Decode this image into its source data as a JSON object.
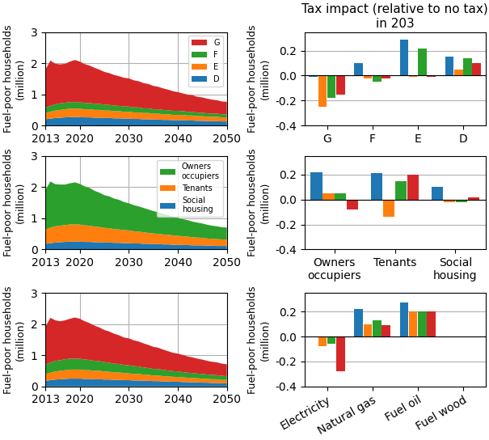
{
  "chart_data": [
    {
      "type": "area",
      "stacked": true,
      "x": [
        2013,
        2014,
        2015,
        2016,
        2017,
        2018,
        2019,
        2020,
        2021,
        2022,
        2023,
        2024,
        2025,
        2026,
        2027,
        2028,
        2029,
        2030,
        2031,
        2032,
        2033,
        2034,
        2035,
        2036,
        2037,
        2038,
        2039,
        2040,
        2041,
        2042,
        2043,
        2044,
        2045,
        2046,
        2047,
        2048,
        2049,
        2050
      ],
      "series": [
        {
          "name": "D",
          "values": [
            0.2,
            0.22,
            0.24,
            0.25,
            0.26,
            0.27,
            0.27,
            0.27,
            0.26,
            0.26,
            0.25,
            0.25,
            0.24,
            0.24,
            0.23,
            0.23,
            0.22,
            0.22,
            0.21,
            0.21,
            0.2,
            0.2,
            0.19,
            0.19,
            0.18,
            0.18,
            0.17,
            0.17,
            0.17,
            0.16,
            0.16,
            0.15,
            0.15,
            0.14,
            0.14,
            0.14,
            0.13,
            0.13
          ]
        },
        {
          "name": "E",
          "values": [
            0.2,
            0.22,
            0.24,
            0.25,
            0.26,
            0.27,
            0.27,
            0.27,
            0.26,
            0.26,
            0.25,
            0.25,
            0.24,
            0.24,
            0.23,
            0.23,
            0.22,
            0.22,
            0.21,
            0.21,
            0.2,
            0.2,
            0.19,
            0.19,
            0.18,
            0.18,
            0.17,
            0.17,
            0.17,
            0.16,
            0.16,
            0.15,
            0.15,
            0.14,
            0.14,
            0.14,
            0.13,
            0.13
          ]
        },
        {
          "name": "F",
          "values": [
            0.18,
            0.19,
            0.2,
            0.21,
            0.21,
            0.21,
            0.21,
            0.21,
            0.2,
            0.2,
            0.2,
            0.19,
            0.19,
            0.18,
            0.18,
            0.17,
            0.17,
            0.17,
            0.16,
            0.16,
            0.15,
            0.15,
            0.14,
            0.14,
            0.14,
            0.13,
            0.13,
            0.13,
            0.12,
            0.12,
            0.12,
            0.11,
            0.11,
            0.11,
            0.1,
            0.1,
            0.1,
            0.1
          ]
        },
        {
          "name": "G",
          "values": [
            1.22,
            1.45,
            1.3,
            1.25,
            1.25,
            1.3,
            1.35,
            1.3,
            1.25,
            1.2,
            1.15,
            1.1,
            1.05,
            1.02,
            0.98,
            0.95,
            0.92,
            0.9,
            0.87,
            0.84,
            0.81,
            0.78,
            0.75,
            0.72,
            0.69,
            0.66,
            0.63,
            0.6,
            0.57,
            0.55,
            0.53,
            0.51,
            0.49,
            0.47,
            0.45,
            0.43,
            0.41,
            0.4
          ]
        }
      ],
      "ylabel": "Fuel-poor households\n(million)",
      "xlim": [
        2013,
        2050
      ],
      "ylim": [
        0,
        3
      ],
      "xticks": [
        2013,
        2020,
        2030,
        2040,
        2050
      ],
      "yticks": [
        0,
        1,
        2,
        3
      ],
      "grid": true,
      "legend": "upper right"
    },
    {
      "type": "bar",
      "title": "Tax impact (relative to no tax) in 203",
      "categories": [
        "G",
        "F",
        "E",
        "D"
      ],
      "series": [
        {
          "values": [
            -0.01,
            0.1,
            0.29,
            0.15
          ]
        },
        {
          "values": [
            -0.25,
            -0.02,
            -0.01,
            0.05
          ]
        },
        {
          "values": [
            -0.18,
            -0.05,
            0.22,
            0.14
          ]
        },
        {
          "values": [
            -0.15,
            -0.02,
            -0.01,
            0.1
          ]
        }
      ],
      "ylabel": "Fuel-poor households\n(million)",
      "ylim": [
        -0.4,
        0.35
      ],
      "yticks": [
        -0.4,
        -0.2,
        0.0,
        0.2
      ],
      "grid": "y"
    },
    {
      "type": "area",
      "stacked": true,
      "x": [
        2013,
        2014,
        2015,
        2016,
        2017,
        2018,
        2019,
        2020,
        2021,
        2022,
        2023,
        2024,
        2025,
        2026,
        2027,
        2028,
        2029,
        2030,
        2031,
        2032,
        2033,
        2034,
        2035,
        2036,
        2037,
        2038,
        2039,
        2040,
        2041,
        2042,
        2043,
        2044,
        2045,
        2046,
        2047,
        2048,
        2049,
        2050
      ],
      "series": [
        {
          "name": "Social\nhousing",
          "values": [
            0.18,
            0.2,
            0.22,
            0.23,
            0.24,
            0.25,
            0.25,
            0.25,
            0.24,
            0.24,
            0.23,
            0.23,
            0.22,
            0.22,
            0.21,
            0.21,
            0.2,
            0.2,
            0.19,
            0.19,
            0.18,
            0.18,
            0.17,
            0.17,
            0.16,
            0.16,
            0.15,
            0.15,
            0.14,
            0.14,
            0.13,
            0.13,
            0.13,
            0.12,
            0.12,
            0.11,
            0.11,
            0.11
          ]
        },
        {
          "name": "Tenants",
          "values": [
            0.45,
            0.5,
            0.52,
            0.53,
            0.54,
            0.55,
            0.55,
            0.55,
            0.53,
            0.52,
            0.5,
            0.49,
            0.47,
            0.46,
            0.44,
            0.43,
            0.42,
            0.41,
            0.39,
            0.38,
            0.37,
            0.35,
            0.34,
            0.33,
            0.32,
            0.31,
            0.3,
            0.29,
            0.28,
            0.27,
            0.26,
            0.25,
            0.24,
            0.23,
            0.22,
            0.22,
            0.21,
            0.21
          ]
        },
        {
          "name": "Owners\noccupiers",
          "values": [
            1.28,
            1.48,
            1.35,
            1.32,
            1.3,
            1.32,
            1.35,
            1.3,
            1.25,
            1.21,
            1.15,
            1.1,
            1.05,
            1.02,
            0.98,
            0.95,
            0.9,
            0.87,
            0.84,
            0.81,
            0.78,
            0.75,
            0.72,
            0.69,
            0.66,
            0.63,
            0.6,
            0.57,
            0.55,
            0.53,
            0.5,
            0.48,
            0.46,
            0.44,
            0.42,
            0.41,
            0.39,
            0.38
          ]
        }
      ],
      "ylabel": "Fuel-poor households\n(million)",
      "xlim": [
        2013,
        2050
      ],
      "ylim": [
        0,
        3
      ],
      "xticks": [
        2013,
        2020,
        2030,
        2040,
        2050
      ],
      "yticks": [
        0,
        1,
        2,
        3
      ],
      "grid": true,
      "legend": "upper right"
    },
    {
      "type": "bar",
      "categories": [
        "Owners\noccupiers",
        "Tenants",
        "Social\nhousing"
      ],
      "series": [
        {
          "values": [
            0.22,
            0.21,
            0.1
          ]
        },
        {
          "values": [
            0.05,
            -0.14,
            -0.02
          ]
        },
        {
          "values": [
            0.05,
            0.15,
            -0.02
          ]
        },
        {
          "values": [
            -0.08,
            0.2,
            0.02
          ]
        }
      ],
      "ylabel": "Fuel-poor households\n(million)",
      "ylim": [
        -0.4,
        0.35
      ],
      "yticks": [
        -0.4,
        -0.2,
        0.0,
        0.2
      ],
      "grid": "y"
    },
    {
      "type": "area",
      "stacked": true,
      "x": [
        2013,
        2014,
        2015,
        2016,
        2017,
        2018,
        2019,
        2020,
        2021,
        2022,
        2023,
        2024,
        2025,
        2026,
        2027,
        2028,
        2029,
        2030,
        2031,
        2032,
        2033,
        2034,
        2035,
        2036,
        2037,
        2038,
        2039,
        2040,
        2041,
        2042,
        2043,
        2044,
        2045,
        2046,
        2047,
        2048,
        2049,
        2050
      ],
      "series": [
        {
          "values": [
            0.18,
            0.2,
            0.22,
            0.23,
            0.24,
            0.25,
            0.25,
            0.25,
            0.24,
            0.24,
            0.23,
            0.23,
            0.22,
            0.22,
            0.21,
            0.21,
            0.2,
            0.2,
            0.19,
            0.19,
            0.18,
            0.18,
            0.17,
            0.17,
            0.16,
            0.16,
            0.15,
            0.15,
            0.14,
            0.14,
            0.13,
            0.13,
            0.12,
            0.12,
            0.11,
            0.11,
            0.1,
            0.1
          ]
        },
        {
          "values": [
            0.22,
            0.24,
            0.26,
            0.27,
            0.28,
            0.29,
            0.29,
            0.29,
            0.28,
            0.28,
            0.27,
            0.27,
            0.26,
            0.25,
            0.24,
            0.24,
            0.23,
            0.22,
            0.21,
            0.21,
            0.2,
            0.19,
            0.18,
            0.18,
            0.17,
            0.16,
            0.16,
            0.15,
            0.15,
            0.14,
            0.14,
            0.13,
            0.13,
            0.12,
            0.12,
            0.12,
            0.11,
            0.11
          ]
        },
        {
          "values": [
            0.3,
            0.33,
            0.34,
            0.34,
            0.35,
            0.35,
            0.35,
            0.35,
            0.34,
            0.33,
            0.32,
            0.31,
            0.3,
            0.29,
            0.28,
            0.27,
            0.26,
            0.26,
            0.25,
            0.24,
            0.23,
            0.22,
            0.21,
            0.21,
            0.2,
            0.19,
            0.18,
            0.18,
            0.17,
            0.16,
            0.16,
            0.15,
            0.15,
            0.14,
            0.14,
            0.13,
            0.13,
            0.12
          ]
        },
        {
          "values": [
            1.22,
            1.43,
            1.3,
            1.25,
            1.25,
            1.28,
            1.32,
            1.28,
            1.23,
            1.18,
            1.13,
            1.08,
            1.03,
            1.0,
            0.96,
            0.92,
            0.88,
            0.86,
            0.83,
            0.8,
            0.77,
            0.74,
            0.71,
            0.68,
            0.65,
            0.62,
            0.59,
            0.57,
            0.55,
            0.52,
            0.5,
            0.48,
            0.46,
            0.44,
            0.42,
            0.41,
            0.39,
            0.38
          ]
        }
      ],
      "ylabel": "Fuel-poor households\n(million)",
      "xlim": [
        2013,
        2050
      ],
      "ylim": [
        0,
        3
      ],
      "xticks": [
        2013,
        2020,
        2030,
        2040,
        2050
      ],
      "yticks": [
        0,
        1,
        2,
        3
      ],
      "grid": true
    },
    {
      "type": "bar",
      "categories": [
        "Electricity",
        "Natural gas",
        "Fuel oil",
        "Fuel wood"
      ],
      "series": [
        {
          "values": [
            0.0,
            0.22,
            0.27,
            0.0
          ]
        },
        {
          "values": [
            -0.08,
            0.1,
            0.2,
            0.0
          ]
        },
        {
          "values": [
            -0.06,
            0.13,
            0.2,
            0.0
          ]
        },
        {
          "values": [
            -0.28,
            0.09,
            0.2,
            0.0
          ]
        }
      ],
      "ylabel": "Fuel-poor households\n(million)",
      "ylim": [
        -0.4,
        0.35
      ],
      "yticks": [
        -0.4,
        -0.2,
        0.0,
        0.2
      ],
      "grid": "y"
    }
  ]
}
